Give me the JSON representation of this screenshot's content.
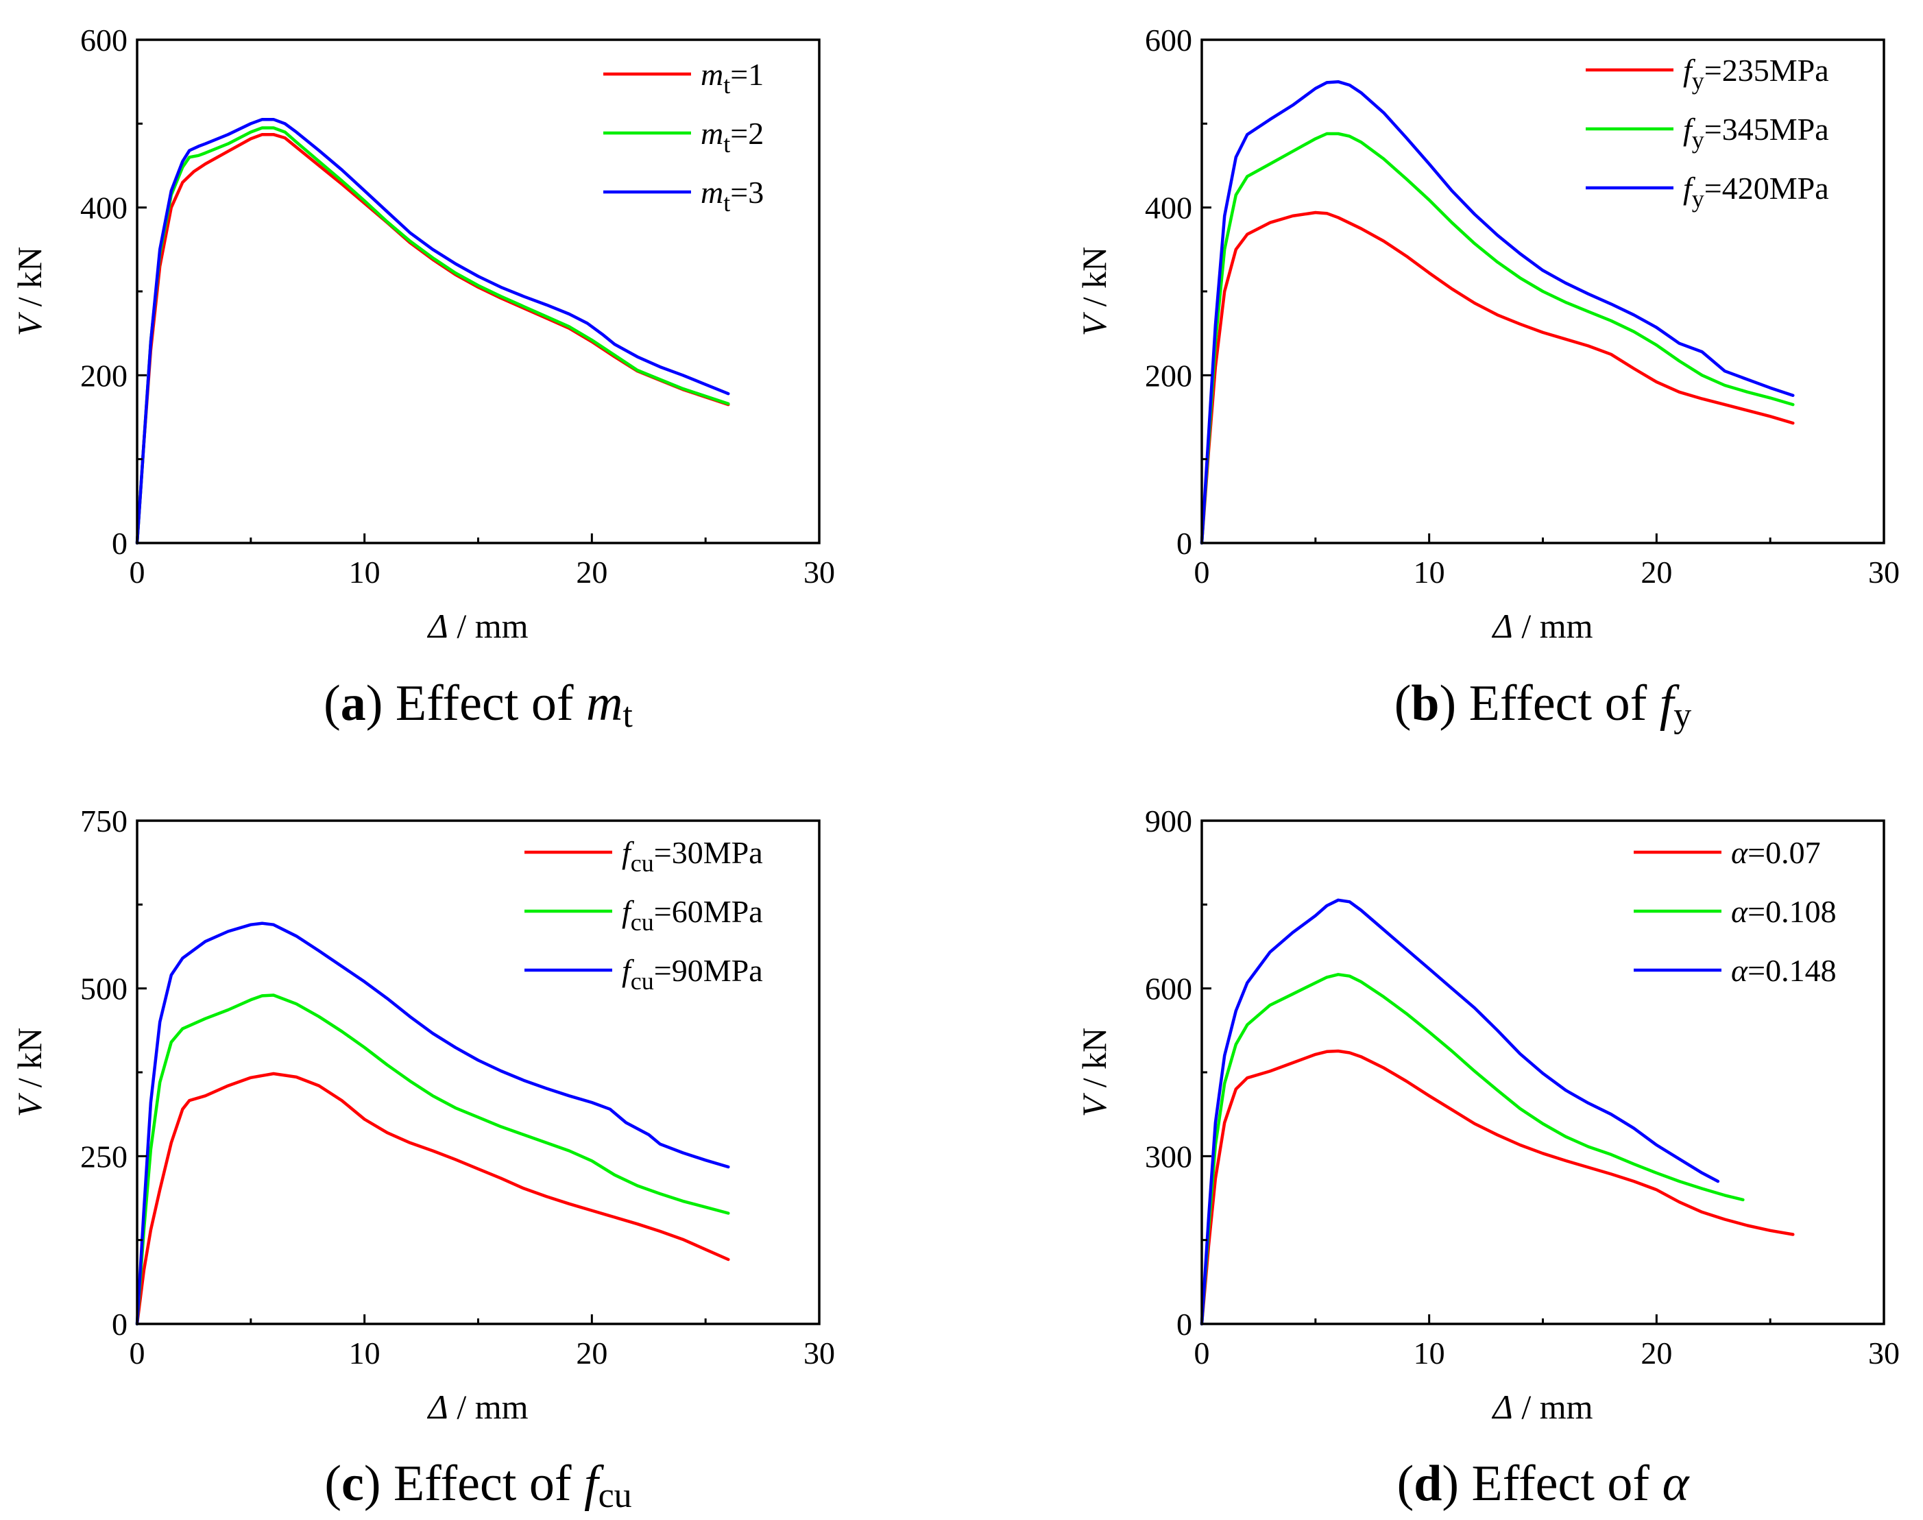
{
  "chart_data": [
    {
      "id": "a",
      "type": "line",
      "caption": {
        "letter": "a",
        "text": "Effect of ",
        "symbol": "m",
        "symbol_sub": "t"
      },
      "xlabel": {
        "symbol": "Δ",
        "unit": " / mm"
      },
      "ylabel": {
        "symbol": "V",
        "unit": " / kN"
      },
      "xlim": [
        0,
        30
      ],
      "ylim": [
        0,
        600
      ],
      "xticks": [
        0,
        10,
        20,
        30
      ],
      "yticks": [
        0,
        200,
        400,
        600
      ],
      "legend_position": "top-right",
      "grid": false,
      "series": [
        {
          "legend": {
            "sym": "m",
            "sub": "t",
            "rest": "=1"
          },
          "color": "#ff0000",
          "x": [
            0,
            0.3,
            0.6,
            1.0,
            1.5,
            2.0,
            2.5,
            3.0,
            4.0,
            5.0,
            5.5,
            6.0,
            6.5,
            7,
            8,
            9,
            10,
            11,
            12,
            13,
            14,
            15,
            16,
            17,
            18,
            19,
            20,
            21,
            22,
            23,
            24,
            25,
            26
          ],
          "y": [
            0,
            120,
            230,
            330,
            400,
            430,
            443,
            452,
            467,
            482,
            487,
            487,
            483,
            472,
            450,
            428,
            405,
            382,
            358,
            338,
            320,
            305,
            292,
            280,
            268,
            256,
            240,
            222,
            205,
            194,
            183,
            174,
            165
          ]
        },
        {
          "legend": {
            "sym": "m",
            "sub": "t",
            "rest": "=2"
          },
          "color": "#00ee00",
          "x": [
            0,
            0.3,
            0.6,
            1.0,
            1.5,
            2.0,
            2.3,
            2.7,
            3.0,
            4.0,
            5.0,
            5.5,
            6.0,
            6.5,
            7,
            8,
            9,
            10,
            11,
            12,
            13,
            14,
            15,
            16,
            17,
            18,
            19,
            20,
            21,
            22,
            23,
            24,
            25,
            26
          ],
          "y": [
            0,
            120,
            240,
            345,
            415,
            448,
            460,
            462,
            465,
            476,
            490,
            495,
            495,
            490,
            478,
            455,
            432,
            408,
            383,
            360,
            340,
            322,
            307,
            294,
            282,
            270,
            258,
            242,
            224,
            206,
            195,
            184,
            175,
            166
          ]
        },
        {
          "legend": {
            "sym": "m",
            "sub": "t",
            "rest": "=3"
          },
          "color": "#0000ff",
          "x": [
            0,
            0.3,
            0.6,
            1.0,
            1.5,
            2.0,
            2.3,
            2.7,
            3.0,
            4.0,
            5.0,
            5.5,
            6.0,
            6.5,
            7,
            8,
            9,
            10,
            11,
            12,
            13,
            14,
            15,
            16,
            17,
            18,
            19,
            19.8,
            20.5,
            21,
            22,
            23,
            24,
            25,
            26
          ],
          "y": [
            0,
            120,
            240,
            350,
            420,
            455,
            468,
            473,
            476,
            487,
            500,
            505,
            505,
            500,
            490,
            468,
            445,
            420,
            395,
            370,
            350,
            333,
            318,
            305,
            294,
            284,
            273,
            262,
            248,
            237,
            222,
            210,
            200,
            189,
            178
          ]
        }
      ]
    },
    {
      "id": "b",
      "type": "line",
      "caption": {
        "letter": "b",
        "text": "Effect of ",
        "symbol": "f",
        "symbol_sub": "y"
      },
      "xlabel": {
        "symbol": "Δ",
        "unit": " / mm"
      },
      "ylabel": {
        "symbol": "V",
        "unit": " / kN"
      },
      "xlim": [
        0,
        30
      ],
      "ylim": [
        0,
        600
      ],
      "xticks": [
        0,
        10,
        20,
        30
      ],
      "yticks": [
        0,
        200,
        400,
        600
      ],
      "legend_position": "top-right",
      "grid": false,
      "series": [
        {
          "legend": {
            "sym": "f",
            "sub": "y",
            "rest": "=235MPa"
          },
          "color": "#ff0000",
          "x": [
            0,
            0.3,
            0.6,
            1.0,
            1.5,
            2.0,
            3.0,
            4.0,
            5.0,
            5.5,
            6.0,
            7,
            8,
            9,
            10,
            11,
            12,
            13,
            14,
            15,
            16,
            17,
            18,
            19,
            20,
            21,
            22,
            23,
            24,
            25,
            26
          ],
          "y": [
            0,
            110,
            210,
            300,
            350,
            368,
            382,
            390,
            394,
            393,
            388,
            375,
            360,
            342,
            322,
            303,
            286,
            272,
            261,
            251,
            243,
            235,
            225,
            208,
            192,
            180,
            172,
            165,
            158,
            151,
            143
          ]
        },
        {
          "legend": {
            "sym": "f",
            "sub": "y",
            "rest": "=345MPa"
          },
          "color": "#00ee00",
          "x": [
            0,
            0.3,
            0.6,
            1.0,
            1.5,
            2.0,
            3.0,
            4.0,
            5.0,
            5.5,
            6.0,
            6.5,
            7,
            8,
            9,
            10,
            11,
            12,
            13,
            14,
            15,
            16,
            17,
            18,
            19,
            20,
            21,
            22,
            23,
            24,
            25,
            26
          ],
          "y": [
            0,
            120,
            240,
            350,
            415,
            437,
            452,
            467,
            482,
            488,
            488,
            485,
            478,
            458,
            434,
            409,
            382,
            357,
            335,
            316,
            300,
            287,
            276,
            265,
            252,
            236,
            217,
            200,
            188,
            180,
            173,
            165
          ]
        },
        {
          "legend": {
            "sym": "f",
            "sub": "y",
            "rest": "=420MPa"
          },
          "color": "#0000ff",
          "x": [
            0,
            0.3,
            0.6,
            1.0,
            1.5,
            2.0,
            3.0,
            4.0,
            5.0,
            5.5,
            6.0,
            6.5,
            7,
            8,
            9,
            10,
            11,
            12,
            13,
            14,
            15,
            16,
            17,
            18,
            19,
            20,
            21,
            22,
            23,
            24,
            25,
            26
          ],
          "y": [
            0,
            130,
            260,
            390,
            460,
            487,
            505,
            522,
            542,
            549,
            550,
            546,
            537,
            513,
            483,
            452,
            420,
            392,
            367,
            345,
            325,
            310,
            297,
            285,
            272,
            257,
            238,
            228,
            205,
            195,
            185,
            176
          ]
        }
      ]
    },
    {
      "id": "c",
      "type": "line",
      "caption": {
        "letter": "c",
        "text": "Effect of ",
        "symbol": "f",
        "symbol_sub": "cu"
      },
      "xlabel": {
        "symbol": "Δ",
        "unit": " / mm"
      },
      "ylabel": {
        "symbol": "V",
        "unit": " / kN"
      },
      "xlim": [
        0,
        30
      ],
      "ylim": [
        0,
        750
      ],
      "xticks": [
        0,
        10,
        20,
        30
      ],
      "yticks": [
        0,
        250,
        500,
        750
      ],
      "legend_position": "top-right",
      "grid": false,
      "series": [
        {
          "legend": {
            "sym": "f",
            "sub": "cu",
            "rest": "=30MPa"
          },
          "color": "#ff0000",
          "x": [
            0,
            0.3,
            0.6,
            1.0,
            1.5,
            2.0,
            2.3,
            3.0,
            4.0,
            5.0,
            6.0,
            7,
            8,
            9,
            10,
            11,
            12,
            13,
            14,
            15,
            16,
            17,
            18,
            19,
            20,
            21,
            22,
            23,
            24,
            25,
            26
          ],
          "y": [
            0,
            80,
            140,
            200,
            270,
            320,
            333,
            340,
            355,
            367,
            373,
            368,
            355,
            333,
            305,
            285,
            270,
            258,
            245,
            231,
            217,
            202,
            190,
            179,
            169,
            159,
            149,
            138,
            126,
            111,
            96
          ]
        },
        {
          "legend": {
            "sym": "f",
            "sub": "cu",
            "rest": "=60MPa"
          },
          "color": "#00ee00",
          "x": [
            0,
            0.3,
            0.6,
            1.0,
            1.5,
            2.0,
            3.0,
            4.0,
            5.0,
            5.5,
            6.0,
            7,
            8,
            9,
            10,
            11,
            12,
            13,
            14,
            15,
            16,
            17,
            18,
            19,
            20,
            21,
            22,
            23,
            24,
            25,
            26
          ],
          "y": [
            0,
            140,
            260,
            360,
            420,
            440,
            455,
            468,
            483,
            489,
            490,
            477,
            458,
            436,
            412,
            386,
            362,
            340,
            322,
            308,
            294,
            282,
            270,
            258,
            243,
            222,
            206,
            194,
            183,
            174,
            165
          ]
        },
        {
          "legend": {
            "sym": "f",
            "sub": "cu",
            "rest": "=90MPa"
          },
          "color": "#0000ff",
          "x": [
            0,
            0.3,
            0.6,
            1.0,
            1.5,
            2.0,
            3.0,
            4.0,
            5.0,
            5.5,
            6.0,
            7,
            8,
            9,
            10,
            11,
            12,
            13,
            14,
            15,
            16,
            17,
            18,
            19,
            20,
            20.8,
            21.5,
            22.5,
            23,
            24,
            25,
            26
          ],
          "y": [
            0,
            170,
            330,
            450,
            520,
            545,
            570,
            585,
            595,
            597,
            595,
            578,
            556,
            533,
            510,
            485,
            458,
            433,
            412,
            393,
            377,
            363,
            351,
            340,
            330,
            320,
            300,
            282,
            268,
            255,
            244,
            234
          ]
        }
      ]
    },
    {
      "id": "d",
      "type": "line",
      "caption": {
        "letter": "d",
        "text": "Effect of ",
        "symbol": "α",
        "symbol_sub": ""
      },
      "xlabel": {
        "symbol": "Δ",
        "unit": " / mm"
      },
      "ylabel": {
        "symbol": "V",
        "unit": " / kN"
      },
      "xlim": [
        0,
        30
      ],
      "ylim": [
        0,
        900
      ],
      "xticks": [
        0,
        10,
        20,
        30
      ],
      "yticks": [
        0,
        300,
        600,
        900
      ],
      "legend_position": "top-right",
      "grid": false,
      "series": [
        {
          "legend": {
            "sym": "α",
            "sub": "",
            "rest": "=0.07"
          },
          "color": "#ff0000",
          "x": [
            0,
            0.3,
            0.6,
            1.0,
            1.5,
            2.0,
            3.0,
            4.0,
            5.0,
            5.5,
            6.0,
            6.5,
            7,
            8,
            9,
            10,
            11,
            12,
            13,
            14,
            15,
            16,
            17,
            18,
            19,
            20,
            21,
            22,
            23,
            24,
            25,
            26
          ],
          "y": [
            0,
            140,
            260,
            360,
            420,
            440,
            452,
            467,
            482,
            487,
            488,
            485,
            478,
            458,
            434,
            408,
            383,
            358,
            338,
            320,
            305,
            292,
            280,
            268,
            255,
            240,
            218,
            200,
            187,
            176,
            167,
            160
          ]
        },
        {
          "legend": {
            "sym": "α",
            "sub": "",
            "rest": "=0.108"
          },
          "color": "#00ee00",
          "x": [
            0,
            0.3,
            0.6,
            1.0,
            1.5,
            2.0,
            3.0,
            4.0,
            5.0,
            5.5,
            6.0,
            6.5,
            7,
            8,
            9,
            10,
            11,
            12,
            13,
            14,
            15,
            16,
            17,
            18,
            19,
            20,
            21,
            22,
            23,
            23.8
          ],
          "y": [
            0,
            170,
            320,
            430,
            500,
            535,
            570,
            590,
            610,
            620,
            625,
            622,
            612,
            585,
            555,
            522,
            488,
            452,
            418,
            385,
            358,
            335,
            317,
            303,
            286,
            270,
            255,
            242,
            230,
            222
          ]
        },
        {
          "legend": {
            "sym": "α",
            "sub": "",
            "rest": "=0.148"
          },
          "color": "#0000ff",
          "x": [
            0,
            0.3,
            0.6,
            1.0,
            1.5,
            2.0,
            3.0,
            4.0,
            5.0,
            5.5,
            6.0,
            6.5,
            7,
            8,
            9,
            10,
            11,
            12,
            13,
            14,
            15,
            16,
            17,
            18,
            19,
            20,
            21,
            22,
            22.7
          ],
          "y": [
            0,
            190,
            360,
            480,
            560,
            610,
            665,
            700,
            730,
            748,
            758,
            755,
            740,
            705,
            670,
            635,
            600,
            565,
            525,
            483,
            448,
            418,
            395,
            375,
            350,
            320,
            295,
            270,
            255
          ]
        }
      ]
    }
  ]
}
